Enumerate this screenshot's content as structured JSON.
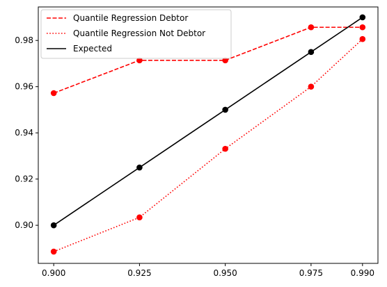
{
  "chart_data": {
    "type": "line",
    "title": "",
    "xlabel": "",
    "ylabel": "",
    "x": [
      0.9,
      0.925,
      0.95,
      0.975,
      0.99
    ],
    "x_tick_labels": [
      "0.900",
      "0.925",
      "0.950",
      "0.975",
      "0.990"
    ],
    "y_ticks": [
      0.9,
      0.92,
      0.94,
      0.96,
      0.98
    ],
    "y_tick_labels": [
      "0.90",
      "0.92",
      "0.94",
      "0.96",
      "0.98"
    ],
    "xlim": [
      0.8955,
      0.9945
    ],
    "ylim": [
      0.8835,
      0.9945
    ],
    "grid": false,
    "legend_position": "top-left",
    "series": [
      {
        "name": "Quantile Regression Debtor",
        "values": [
          0.9572,
          0.9714,
          0.9714,
          0.9857,
          0.9857
        ],
        "color": "#ff0000",
        "line_style": "dashed",
        "marker": "circle"
      },
      {
        "name": "Quantile Regression Not Debtor",
        "values": [
          0.8886,
          0.9034,
          0.9331,
          0.96,
          0.9806
        ],
        "color": "#ff0000",
        "line_style": "dotted",
        "marker": "circle"
      },
      {
        "name": "Expected",
        "values": [
          0.9,
          0.925,
          0.95,
          0.975,
          0.99
        ],
        "color": "#000000",
        "line_style": "solid",
        "marker": "circle"
      }
    ]
  }
}
